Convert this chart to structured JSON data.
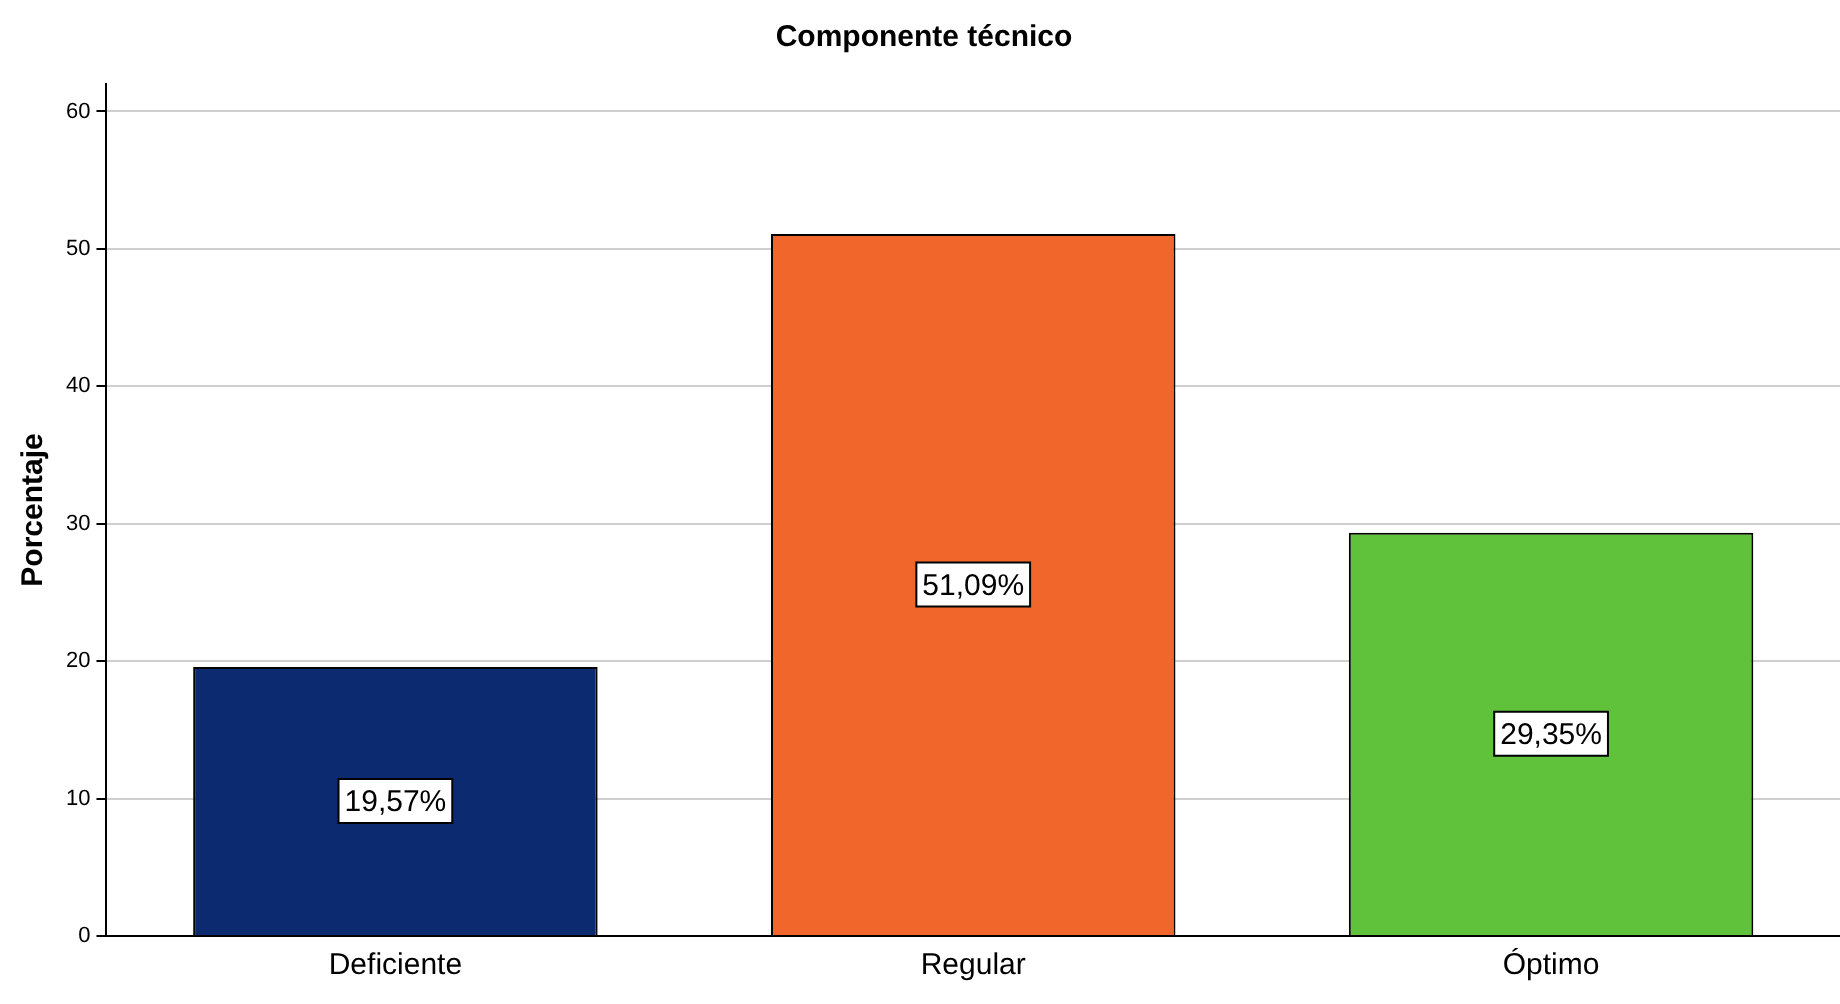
{
  "chart_data": {
    "type": "bar",
    "title": "Componente técnico",
    "ylabel": "Porcentaje",
    "categories": [
      "Deficiente",
      "Regular",
      "Óptimo"
    ],
    "values": [
      19.57,
      51.09,
      29.35
    ],
    "colors": [
      "#0b2a6f",
      "#f1672b",
      "#60c23b"
    ],
    "value_labels": [
      "19,57%",
      "51,09%",
      "29,35%"
    ],
    "ylim": [
      0,
      62
    ],
    "yticks": [
      0,
      10,
      20,
      30,
      40,
      50,
      60
    ],
    "grid": "y",
    "legend": false
  }
}
